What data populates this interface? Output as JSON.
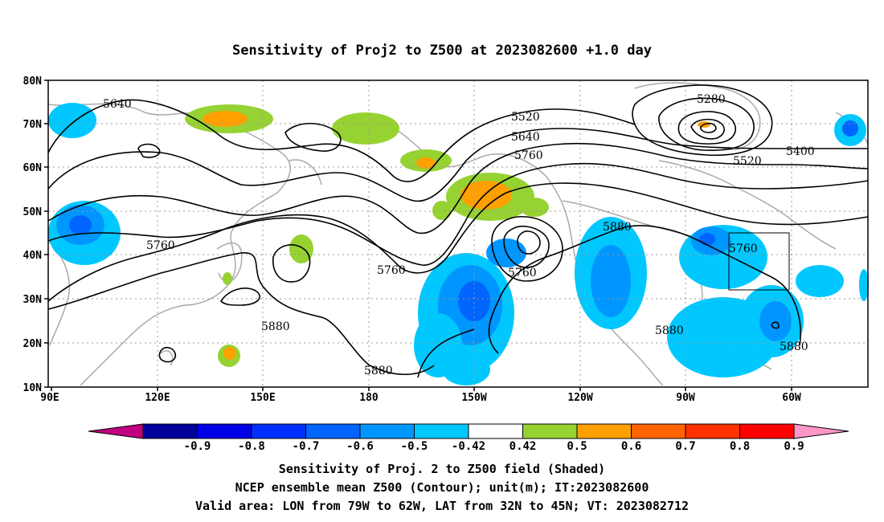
{
  "title": "Sensitivity of Proj2 to Z500 at 2023082600 +1.0 day",
  "lat_ticks": [
    "80N",
    "70N",
    "60N",
    "50N",
    "40N",
    "30N",
    "20N",
    "10N"
  ],
  "lon_ticks": [
    "90E",
    "120E",
    "150E",
    "180",
    "150W",
    "120W",
    "90W",
    "60W"
  ],
  "contour_labels": [
    "5640",
    "5520",
    "5640",
    "5760",
    "5280",
    "5400",
    "5520",
    "5760",
    "5760",
    "5760",
    "5880",
    "5760",
    "5880",
    "5880",
    "5880",
    "5880"
  ],
  "colorbar": {
    "colors": [
      "#c00080",
      "#00009b",
      "#0000e6",
      "#0030ff",
      "#0064ff",
      "#0096ff",
      "#00c8ff",
      "#ffffff",
      "#96d232",
      "#ffa000",
      "#ff6400",
      "#ff3200",
      "#ff0000",
      "#ff96c8"
    ],
    "labels": [
      "-0.9",
      "-0.8",
      "-0.7",
      "-0.6",
      "-0.5",
      "-0.42",
      "0.42",
      "0.5",
      "0.6",
      "0.7",
      "0.8",
      "0.9"
    ]
  },
  "captions": [
    "Sensitivity of Proj. 2 to Z500 field (Shaded)",
    "NCEP ensemble mean Z500 (Contour); unit(m); IT:2023082600",
    "Valid area: LON from 79W to 62W, LAT from 32N to 45N; VT: 2023082712"
  ]
}
